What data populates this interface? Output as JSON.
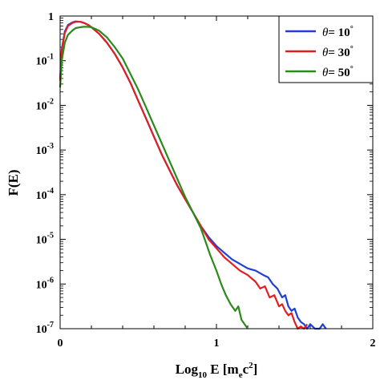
{
  "chart_data": {
    "type": "line",
    "xlabel": "Log10 E [mec2]",
    "ylabel": "F(E)",
    "xlim": [
      0,
      2
    ],
    "ylim_log10": [
      -7,
      0
    ],
    "y_scale": "log",
    "grid": false,
    "legend_placement": "top-right",
    "x_ticks": [
      "0",
      "1",
      "2"
    ],
    "y_ticks": [
      "1",
      "10-1",
      "10-2",
      "10-3",
      "10-4",
      "10-5",
      "10-6",
      "10-7"
    ],
    "series": [
      {
        "name": "θ= 10°",
        "color": "#1f3fd6",
        "x": [
          0.0,
          0.01,
          0.03,
          0.05,
          0.08,
          0.1,
          0.13,
          0.15,
          0.18,
          0.2,
          0.25,
          0.3,
          0.35,
          0.4,
          0.45,
          0.5,
          0.55,
          0.6,
          0.65,
          0.7,
          0.75,
          0.8,
          0.85,
          0.9,
          0.95,
          1.0,
          1.05,
          1.1,
          1.15,
          1.2,
          1.25,
          1.3,
          1.33,
          1.36,
          1.39,
          1.42,
          1.44,
          1.46,
          1.48,
          1.5,
          1.52,
          1.54,
          1.56,
          1.58,
          1.6,
          1.63,
          1.66,
          1.68,
          1.7
        ],
        "y_log10": [
          -1.4,
          -0.75,
          -0.35,
          -0.2,
          -0.14,
          -0.12,
          -0.13,
          -0.15,
          -0.2,
          -0.25,
          -0.4,
          -0.6,
          -0.85,
          -1.15,
          -1.5,
          -1.9,
          -2.3,
          -2.7,
          -3.1,
          -3.45,
          -3.8,
          -4.1,
          -4.4,
          -4.7,
          -4.95,
          -5.15,
          -5.3,
          -5.45,
          -5.55,
          -5.65,
          -5.7,
          -5.8,
          -5.85,
          -6.0,
          -6.1,
          -6.3,
          -6.25,
          -6.5,
          -6.6,
          -6.55,
          -6.75,
          -6.85,
          -6.9,
          -7.0,
          -6.9,
          -7.0,
          -7.0,
          -6.9,
          -7.0
        ]
      },
      {
        "name": "θ= 30°",
        "color": "#e02020",
        "x": [
          0.0,
          0.01,
          0.03,
          0.05,
          0.08,
          0.1,
          0.13,
          0.15,
          0.18,
          0.2,
          0.25,
          0.3,
          0.35,
          0.4,
          0.45,
          0.5,
          0.55,
          0.6,
          0.65,
          0.7,
          0.75,
          0.8,
          0.85,
          0.9,
          0.95,
          1.0,
          1.05,
          1.1,
          1.15,
          1.2,
          1.25,
          1.28,
          1.31,
          1.34,
          1.37,
          1.4,
          1.42,
          1.44,
          1.46,
          1.48,
          1.5,
          1.52,
          1.54,
          1.56,
          1.58
        ],
        "y_log10": [
          -1.45,
          -0.78,
          -0.38,
          -0.22,
          -0.15,
          -0.13,
          -0.13,
          -0.15,
          -0.2,
          -0.25,
          -0.4,
          -0.6,
          -0.85,
          -1.15,
          -1.5,
          -1.9,
          -2.3,
          -2.7,
          -3.1,
          -3.45,
          -3.8,
          -4.1,
          -4.4,
          -4.7,
          -5.0,
          -5.2,
          -5.4,
          -5.55,
          -5.7,
          -5.8,
          -5.95,
          -6.1,
          -6.05,
          -6.3,
          -6.25,
          -6.5,
          -6.45,
          -6.6,
          -6.7,
          -6.65,
          -6.85,
          -7.0,
          -6.95,
          -7.0,
          -6.9
        ]
      },
      {
        "name": "θ= 50°",
        "color": "#2a8a1a",
        "x": [
          0.0,
          0.01,
          0.03,
          0.05,
          0.08,
          0.1,
          0.13,
          0.15,
          0.18,
          0.2,
          0.25,
          0.3,
          0.35,
          0.4,
          0.45,
          0.5,
          0.55,
          0.6,
          0.65,
          0.7,
          0.75,
          0.8,
          0.85,
          0.9,
          0.93,
          0.96,
          1.0,
          1.03,
          1.06,
          1.09,
          1.12,
          1.14,
          1.16,
          1.18,
          1.2
        ],
        "y_log10": [
          -1.6,
          -1.0,
          -0.6,
          -0.42,
          -0.32,
          -0.27,
          -0.25,
          -0.24,
          -0.24,
          -0.25,
          -0.33,
          -0.48,
          -0.7,
          -0.95,
          -1.3,
          -1.65,
          -2.05,
          -2.45,
          -2.85,
          -3.25,
          -3.65,
          -4.05,
          -4.4,
          -4.75,
          -5.05,
          -5.35,
          -5.7,
          -6.0,
          -6.25,
          -6.45,
          -6.6,
          -6.5,
          -6.8,
          -6.9,
          -7.0
        ]
      }
    ]
  }
}
